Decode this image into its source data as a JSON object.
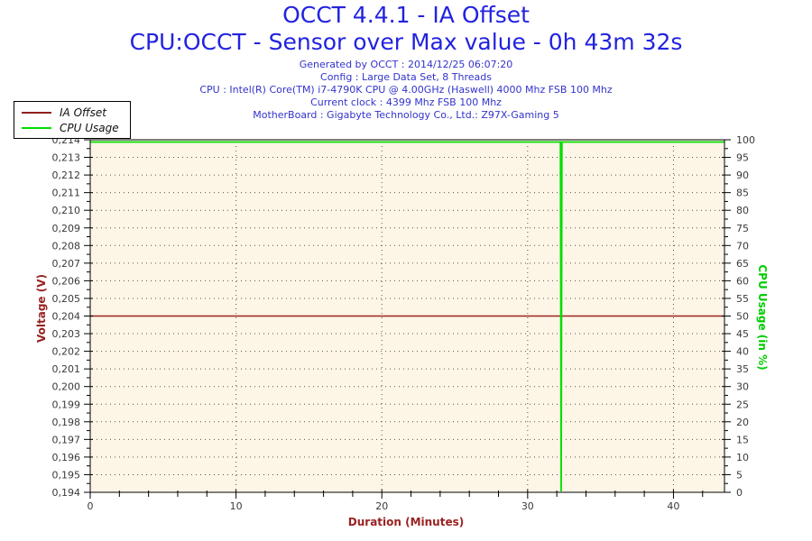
{
  "header": {
    "title": "OCCT 4.4.1 - IA Offset",
    "subtitle": "CPU:OCCT - Sensor over Max value - 0h 43m 32s",
    "title_color": "#2222e0",
    "info_color": "#3333cc",
    "info": [
      "Generated by OCCT : 2014/12/25 06:07:20",
      "Config : Large Data Set, 8 Threads",
      "CPU : Intel(R) Core(TM) i7-4790K CPU @ 4.00GHz (Haswell) 4000 Mhz FSB 100 Mhz",
      "Current clock : 4399 Mhz FSB 100 Mhz",
      "MotherBoard : Gigabyte Technology Co., Ltd.: Z97X-Gaming 5"
    ]
  },
  "legend": {
    "items": [
      {
        "label": "IA Offset",
        "color": "#8f1f1f"
      },
      {
        "label": "CPU Usage",
        "color": "#00dd00"
      }
    ]
  },
  "chart_data": {
    "type": "line",
    "title": "OCCT 4.4.1 - IA Offset",
    "subtitle": "CPU:OCCT - Sensor over Max value - 0h 43m 32s",
    "xlabel": "Duration (Minutes)",
    "ylabel_left": "Voltage (V)",
    "ylabel_right": "CPU Usage (in %)",
    "plot_bg": "#fdf5e6",
    "grid": "dotted",
    "grid_color": "#555555",
    "border_color": "#000000",
    "tick_label_color": "#3a3a3a",
    "axis_title_colors": {
      "left": "#992222",
      "right": "#00cc00",
      "bottom": "#992222"
    },
    "legend_position": "top-left",
    "xlim": [
      0,
      43.5
    ],
    "x_major_ticks": [
      0,
      10,
      20,
      30,
      40
    ],
    "x_major_labels": [
      "0",
      "10",
      "20",
      "30",
      "40"
    ],
    "x_minor_step": 2,
    "ylim_left": [
      0.194,
      0.214
    ],
    "y_left_step": 0.001,
    "y_left_labels": [
      "0,214",
      "0,213",
      "0,212",
      "0,211",
      "0,210",
      "0,209",
      "0,208",
      "0,207",
      "0,206",
      "0,205",
      "0,204",
      "0,203",
      "0,202",
      "0,201",
      "0,200",
      "0,199",
      "0,198",
      "0,197",
      "0,196",
      "0,195",
      "0,194"
    ],
    "ylim_right": [
      0,
      100
    ],
    "y_right_step": 5,
    "y_right_labels": [
      "100",
      "95",
      "90",
      "85",
      "80",
      "75",
      "70",
      "65",
      "60",
      "55",
      "50",
      "45",
      "40",
      "35",
      "30",
      "25",
      "20",
      "15",
      "10",
      "5",
      "0"
    ],
    "series": [
      {
        "name": "IA Offset",
        "axis": "left",
        "color": "#9c2222",
        "width": 1.4,
        "points": [
          [
            0,
            0.204
          ],
          [
            43.5,
            0.204
          ]
        ]
      },
      {
        "name": "CPU Usage",
        "axis": "right",
        "color": "#00dd00",
        "width": 1.8,
        "points": [
          [
            0,
            100
          ],
          [
            32.25,
            100
          ],
          [
            32.3,
            0
          ],
          [
            32.35,
            100
          ],
          [
            43.5,
            100
          ]
        ]
      }
    ]
  }
}
